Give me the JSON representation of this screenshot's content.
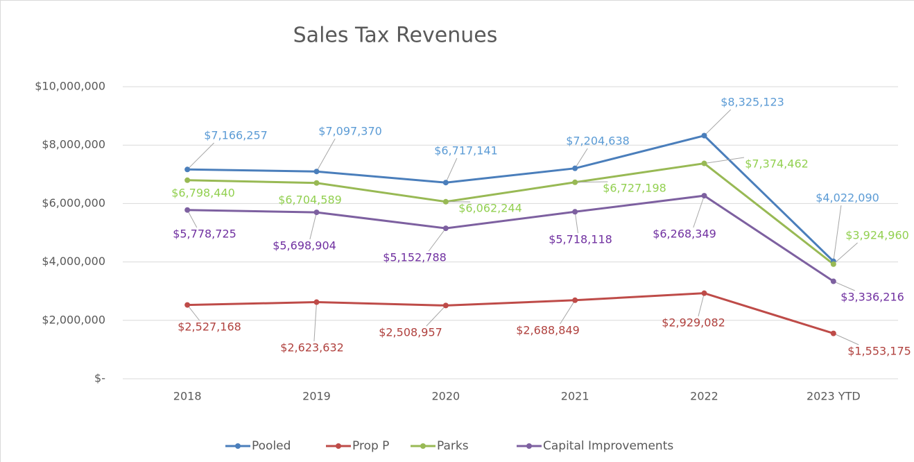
{
  "chart_data": {
    "type": "line",
    "title": "Sales Tax Revenues",
    "categories": [
      "2018",
      "2019",
      "2020",
      "2021",
      "2022",
      "2023 YTD"
    ],
    "series": [
      {
        "name": "Pooled",
        "color": "#4a7ebb",
        "label_color": "#5b9bd5",
        "values": [
          7166257,
          7097370,
          6717141,
          7204638,
          8325123,
          4022090
        ],
        "value_labels": [
          "$7,166,257",
          "$7,097,370",
          "$6,717,141",
          "$7,204,638",
          "$8,325,123",
          "$4,022,090"
        ]
      },
      {
        "name": "Prop P",
        "color": "#be4b48",
        "label_color": "#b0413e",
        "values": [
          2527168,
          2623632,
          2508957,
          2688849,
          2929082,
          1553175
        ],
        "value_labels": [
          "$2,527,168",
          "$2,623,632",
          "$2,508,957",
          "$2,688,849",
          "$2,929,082",
          "$1,553,175"
        ]
      },
      {
        "name": "Parks",
        "color": "#98b954",
        "label_color": "#92d050",
        "values": [
          6798440,
          6704589,
          6062244,
          6727198,
          7374462,
          3924960
        ],
        "value_labels": [
          "$6,798,440",
          "$6,704,589",
          "$6,062,244",
          "$6,727,198",
          "$7,374,462",
          "$3,924,960"
        ]
      },
      {
        "name": "Capital Improvements",
        "color": "#7d60a0",
        "label_color": "#7030a0",
        "values": [
          5778725,
          5698904,
          5152788,
          5718118,
          6268349,
          3336216
        ],
        "value_labels": [
          "$5,778,725",
          "$5,698,904",
          "$5,152,788",
          "$5,718,118",
          "$6,268,349",
          "$3,336,216"
        ]
      }
    ],
    "ylim": [
      0,
      10000000
    ],
    "yticks": [
      {
        "value": 0,
        "label": "$-"
      },
      {
        "value": 2000000,
        "label": "$2,000,000"
      },
      {
        "value": 4000000,
        "label": "$4,000,000"
      },
      {
        "value": 6000000,
        "label": "$6,000,000"
      },
      {
        "value": 8000000,
        "label": "$8,000,000"
      },
      {
        "value": 10000000,
        "label": "$10,000,000"
      }
    ],
    "grid": true,
    "legend": "bottom"
  }
}
